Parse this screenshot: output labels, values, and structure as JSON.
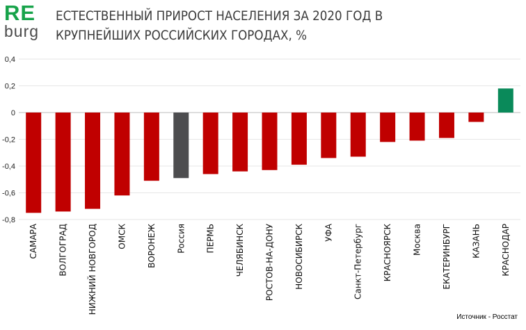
{
  "logo": {
    "top": "RE",
    "bottom": "burg",
    "top_color": "#17a34a",
    "bottom_color": "#4a4a4a"
  },
  "title": {
    "line1": "ЕСТЕСТВЕННЫЙ ПРИРОСТ НАСЕЛЕНИЯ ЗА 2020 ГОД В",
    "line2": "КРУПНЕЙШИХ РОССИЙСКИХ ГОРОДАХ, %"
  },
  "source": "Источник - Росстат",
  "colors": {
    "negative": "#c00000",
    "russia": "#4d4d4f",
    "positive": "#0a8a5a",
    "grid": "#e6e6e6"
  },
  "chart_data": {
    "type": "bar",
    "title": "ЕСТЕСТВЕННЫЙ ПРИРОСТ НАСЕЛЕНИЯ ЗА 2020 ГОД В КРУПНЕЙШИХ РОССИЙСКИХ ГОРОДАХ, %",
    "xlabel": "",
    "ylabel": "",
    "ylim": [
      -0.8,
      0.4
    ],
    "yticks": [
      0.4,
      0.2,
      0,
      -0.2,
      -0.4,
      -0.6,
      -0.8
    ],
    "ytick_labels": [
      "0,4",
      "0,2",
      "0",
      "-0,2",
      "-0,4",
      "-0,6",
      "-0,8"
    ],
    "grid": true,
    "categories": [
      "САМАРА",
      "ВОЛГОГРАД",
      "НИЖНИЙ НОВГОРОД",
      "ОМСК",
      "ВОРОНЕЖ",
      "Россия",
      "ПЕРМЬ",
      "ЧЕЛЯБИНСК",
      "РОСТОВ-НА-ДОНУ",
      "НОВОСИБИРСК",
      "УФА",
      "Санкт-Петербург",
      "КРАСНОЯРСК",
      "Москва",
      "ЕКАТЕРИНБУРГ",
      "КАЗАНЬ",
      "КРАСНОДАР"
    ],
    "values": [
      -0.75,
      -0.74,
      -0.72,
      -0.62,
      -0.51,
      -0.49,
      -0.46,
      -0.44,
      -0.43,
      -0.39,
      -0.34,
      -0.33,
      -0.22,
      -0.21,
      -0.19,
      -0.07,
      0.18
    ]
  }
}
